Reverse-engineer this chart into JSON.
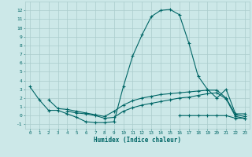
{
  "xlabel": "Humidex (Indice chaleur)",
  "background_color": "#cce8e8",
  "grid_color": "#aacccc",
  "line_color": "#006666",
  "x_values": [
    0,
    1,
    2,
    3,
    4,
    5,
    6,
    7,
    8,
    9,
    10,
    11,
    12,
    13,
    14,
    15,
    16,
    17,
    18,
    19,
    20,
    21,
    22,
    23
  ],
  "series": [
    [
      3.3,
      1.8,
      0.6,
      0.6,
      0.2,
      -0.2,
      -0.7,
      -0.8,
      -0.8,
      -0.7,
      3.3,
      6.8,
      9.2,
      11.3,
      12.0,
      12.1,
      11.5,
      8.3,
      4.5,
      3.0,
      2.0,
      3.0,
      0.2,
      0.2
    ],
    [
      null,
      null,
      1.8,
      0.8,
      0.7,
      0.5,
      0.3,
      0.1,
      -0.1,
      0.5,
      1.2,
      1.7,
      2.0,
      2.2,
      2.4,
      2.5,
      2.6,
      2.7,
      2.8,
      2.9,
      2.9,
      2.0,
      0.1,
      -0.1
    ],
    [
      null,
      null,
      null,
      null,
      0.5,
      0.3,
      0.2,
      0.0,
      -0.3,
      -0.2,
      0.5,
      0.9,
      1.2,
      1.4,
      1.6,
      1.8,
      2.0,
      2.1,
      2.3,
      2.5,
      2.6,
      1.9,
      -0.1,
      -0.3
    ],
    [
      null,
      null,
      null,
      null,
      null,
      null,
      null,
      null,
      null,
      null,
      null,
      null,
      null,
      null,
      null,
      null,
      0.0,
      0.0,
      0.0,
      0.0,
      0.0,
      0.0,
      -0.3,
      -0.3
    ]
  ],
  "ylim": [
    -1.5,
    13.0
  ],
  "xlim": [
    -0.5,
    23.5
  ],
  "yticks": [
    -1,
    0,
    1,
    2,
    3,
    4,
    5,
    6,
    7,
    8,
    9,
    10,
    11,
    12
  ],
  "xticks": [
    0,
    1,
    2,
    3,
    4,
    5,
    6,
    7,
    8,
    9,
    10,
    11,
    12,
    13,
    14,
    15,
    16,
    17,
    18,
    19,
    20,
    21,
    22,
    23
  ]
}
